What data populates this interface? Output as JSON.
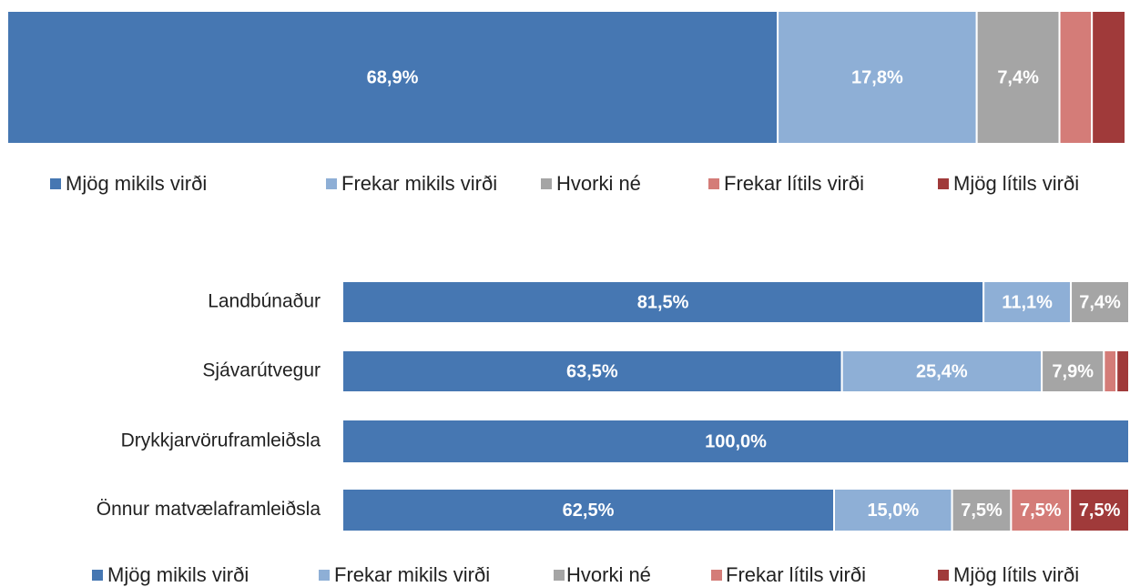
{
  "chart_data": [
    {
      "type": "stacked_bar_h",
      "xlim": [
        0,
        100
      ],
      "series": [
        {
          "name": "Mjög mikils virði",
          "color": "#4677b2",
          "values": [
            68.9
          ],
          "value_labels": [
            "68,9%"
          ]
        },
        {
          "name": "Frekar mikils virði",
          "color": "#8eafd6",
          "values": [
            17.8
          ],
          "value_labels": [
            "17,8%"
          ]
        },
        {
          "name": "Hvorki né",
          "color": "#a5a5a5",
          "values": [
            7.4
          ],
          "value_labels": [
            "7,4%"
          ]
        },
        {
          "name": "Frekar lítils virði",
          "color": "#d47c78",
          "values": [
            2.9
          ],
          "value_labels": [
            null
          ]
        },
        {
          "name": "Mjög lítils virði",
          "color": "#a03a3a",
          "values": [
            3.0
          ],
          "value_labels": [
            null
          ]
        }
      ]
    },
    {
      "type": "stacked_bar_h",
      "xlim": [
        0,
        100
      ],
      "categories": [
        "Landbúnaður",
        "Sjávarútvegur",
        "Drykkjarvöruframleiðsla",
        "Önnur matvælaframleiðsla"
      ],
      "series": [
        {
          "name": "Mjög mikils virði",
          "color": "#4677b2",
          "values": [
            81.5,
            63.5,
            100.0,
            62.5
          ],
          "value_labels": [
            "81,5%",
            "63,5%",
            "100,0%",
            "62,5%"
          ]
        },
        {
          "name": "Frekar mikils virði",
          "color": "#8eafd6",
          "values": [
            11.1,
            25.4,
            0,
            15.0
          ],
          "value_labels": [
            "11,1%",
            "25,4%",
            null,
            "15,0%"
          ]
        },
        {
          "name": "Hvorki né",
          "color": "#a5a5a5",
          "values": [
            7.4,
            7.9,
            0,
            7.5
          ],
          "value_labels": [
            "7,4%",
            "7,9%",
            null,
            "7,5%"
          ]
        },
        {
          "name": "Frekar lítils virði",
          "color": "#d47c78",
          "values": [
            0,
            1.6,
            0,
            7.5
          ],
          "value_labels": [
            null,
            null,
            null,
            "7,5%"
          ]
        },
        {
          "name": "Mjög lítils virði",
          "color": "#a03a3a",
          "values": [
            0,
            1.6,
            0,
            7.5
          ],
          "value_labels": [
            null,
            null,
            null,
            "7,5%"
          ]
        }
      ]
    }
  ]
}
